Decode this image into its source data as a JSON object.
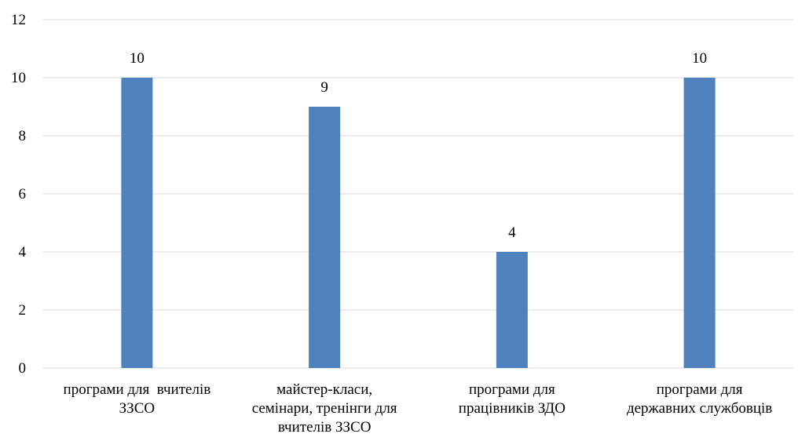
{
  "chart_data": {
    "type": "bar",
    "categories": [
      [
        "програми для  вчителів",
        "ЗЗСО"
      ],
      [
        "майстер-класи,",
        "семінари, тренінги для",
        "вчителів ЗЗСО"
      ],
      [
        "програми для",
        "працівників ЗДО"
      ],
      [
        "програми для",
        "державних службовців"
      ]
    ],
    "values": [
      10,
      9,
      4,
      10
    ],
    "data_labels": [
      "10",
      "9",
      "4",
      "10"
    ],
    "ylim": [
      0,
      12
    ],
    "yticks": [
      "0",
      "2",
      "4",
      "6",
      "8",
      "10",
      "12"
    ],
    "title": "",
    "xlabel": "",
    "ylabel": "",
    "grid": true,
    "legend": "none",
    "bar_color": "#4f81bd"
  }
}
